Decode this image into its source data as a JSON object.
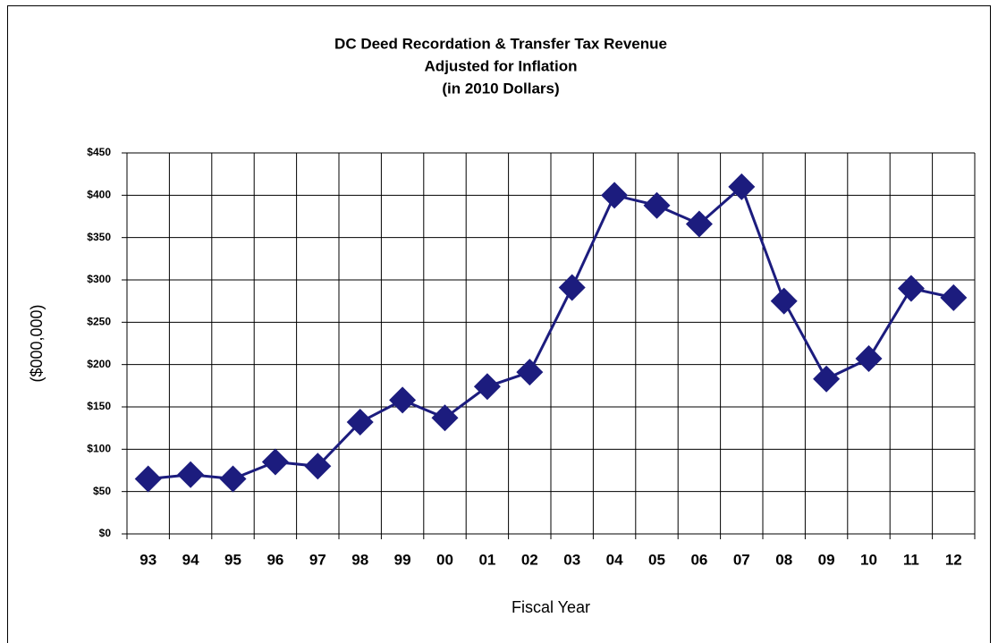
{
  "chart_data": {
    "type": "line",
    "title": "DC  Deed Recordation & Transfer Tax Revenue",
    "subtitle": [
      "Adjusted for Inflation",
      "(in 2010 Dollars)"
    ],
    "xlabel": "Fiscal Year",
    "ylabel": "($000,000)",
    "categories": [
      "93",
      "94",
      "95",
      "96",
      "97",
      "98",
      "99",
      "00",
      "01",
      "02",
      "03",
      "04",
      "05",
      "06",
      "07",
      "08",
      "09",
      "10",
      "11",
      "12"
    ],
    "values": [
      65,
      70,
      65,
      85,
      80,
      132,
      158,
      137,
      174,
      191,
      291,
      400,
      388,
      366,
      410,
      275,
      183,
      207,
      290,
      279
    ],
    "color": "#1c1c7e",
    "ylim": [
      0,
      450
    ],
    "yticks": [
      {
        "value": 0,
        "label": "$0"
      },
      {
        "value": 50,
        "label": "$50"
      },
      {
        "value": 100,
        "label": "$100"
      },
      {
        "value": 150,
        "label": "$150"
      },
      {
        "value": 200,
        "label": "$200"
      },
      {
        "value": 250,
        "label": "$250"
      },
      {
        "value": 300,
        "label": "$300"
      },
      {
        "value": 350,
        "label": "$350"
      },
      {
        "value": 400,
        "label": "$400"
      },
      {
        "value": 450,
        "label": "$450"
      }
    ],
    "grid": true
  }
}
